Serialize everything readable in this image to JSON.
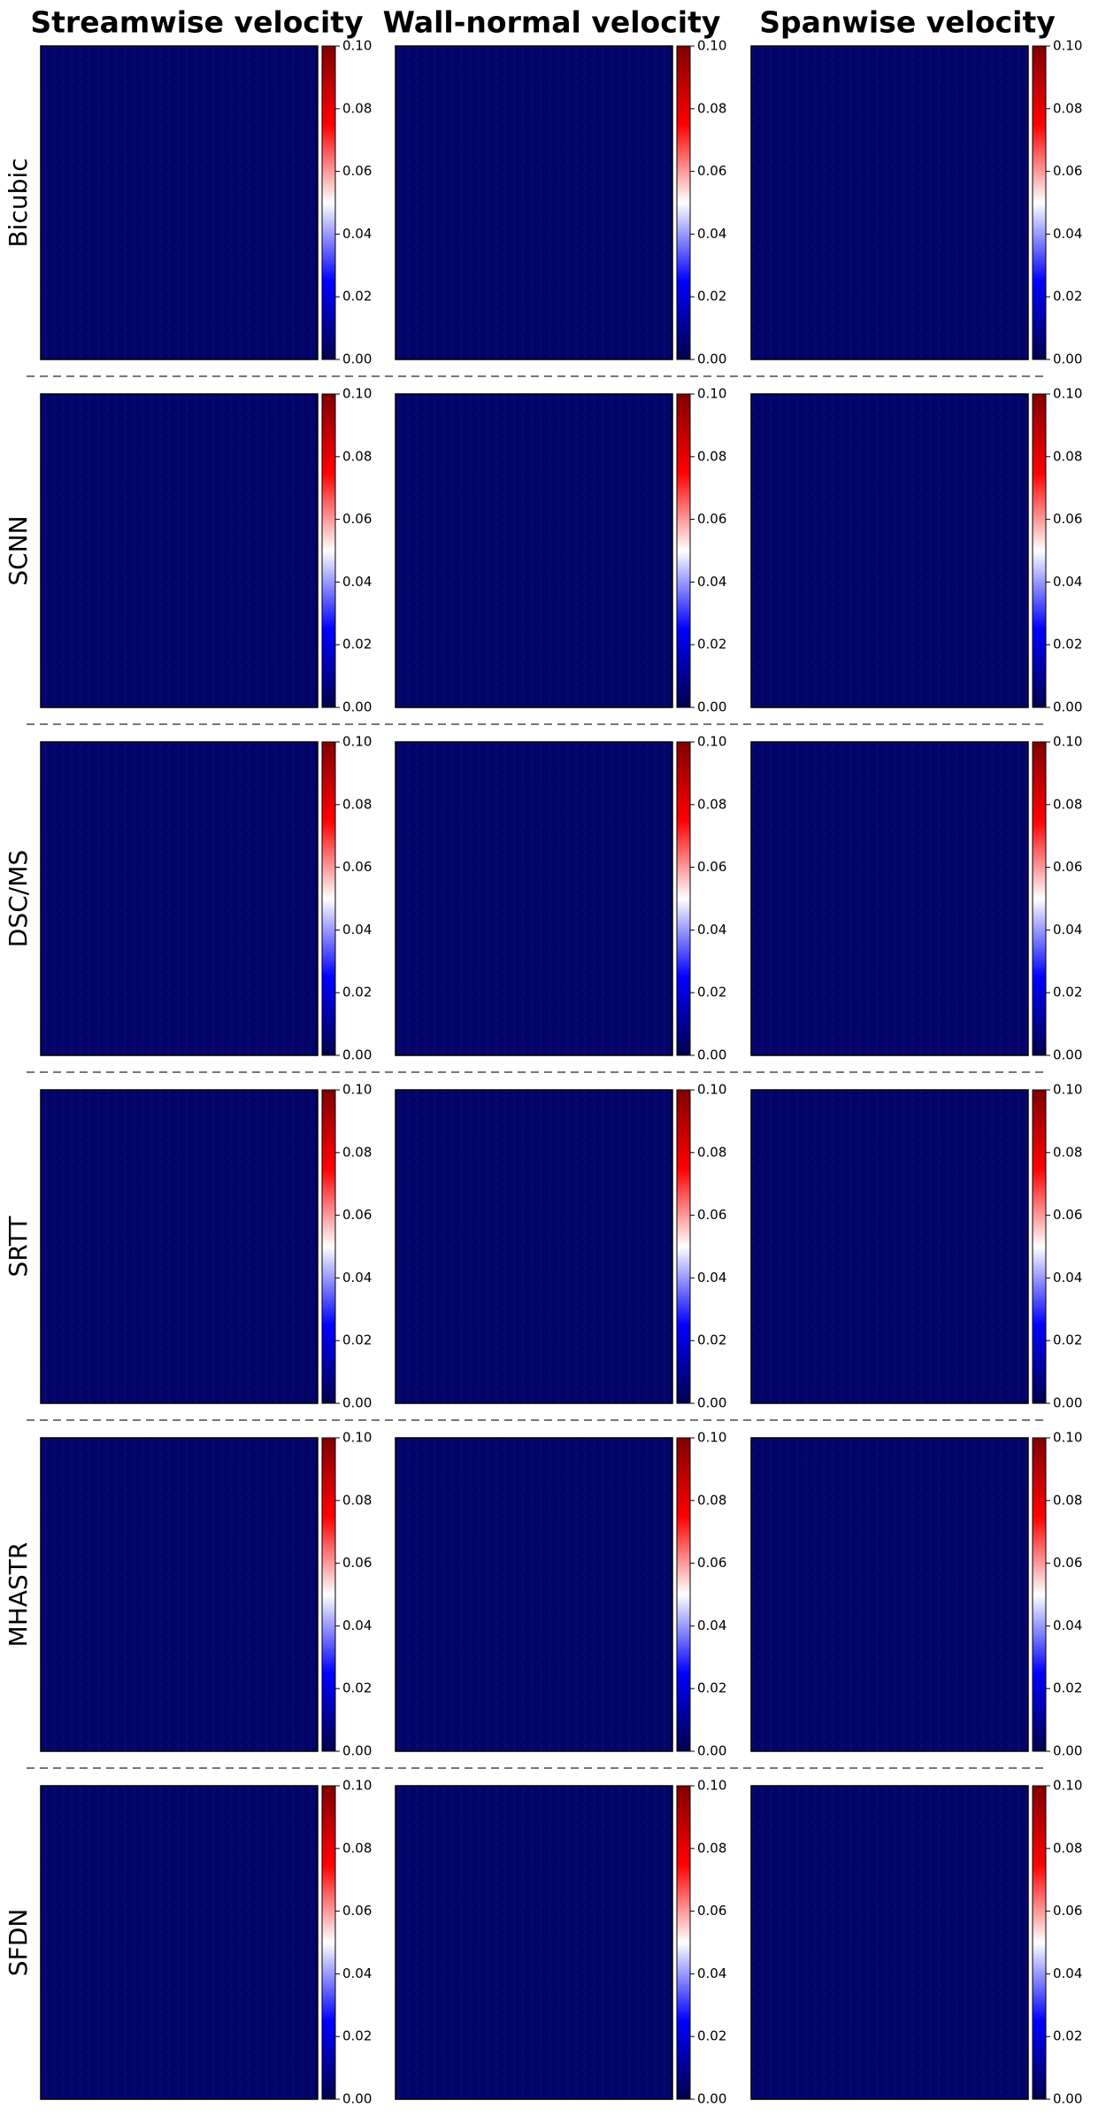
{
  "chart_data": {
    "type": "heatmap",
    "columns": [
      "Streamwise velocity",
      "Wall-normal velocity",
      "Spanwise velocity"
    ],
    "rows": [
      "Bicubic",
      "SCNN",
      "DSC/MS",
      "SRTT",
      "MHASTR",
      "SFDN"
    ],
    "clim": [
      0,
      0.1
    ],
    "cticks": [
      {
        "value": 0,
        "label": "0.00"
      },
      {
        "value": 0.02,
        "label": "0.02"
      },
      {
        "value": 0.04,
        "label": "0.04"
      },
      {
        "value": 0.06,
        "label": "0.06"
      },
      {
        "value": 0.08,
        "label": "0.08"
      },
      {
        "value": 0.1,
        "label": "0.10"
      }
    ],
    "colormap": [
      "#00004d",
      "#0000ff",
      "#ffffff",
      "#ff0000",
      "#800000"
    ]
  }
}
